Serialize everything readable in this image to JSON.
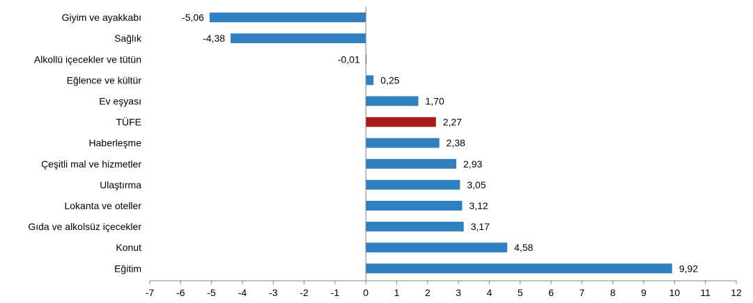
{
  "chart_data": {
    "type": "bar",
    "orientation": "horizontal",
    "categories": [
      "Giyim ve ayakkabı",
      "Sağlık",
      "Alkollü içecekler ve tütün",
      "Eğlence ve kültür",
      "Ev eşyası",
      "TÜFE",
      "Haberleşme",
      "Çeşitli mal ve hizmetler",
      "Ulaştırma",
      "Lokanta ve oteller",
      "Gıda ve alkolsüz içecekler",
      "Konut",
      "Eğitim"
    ],
    "values": [
      -5.06,
      -4.38,
      -0.01,
      0.25,
      1.7,
      2.27,
      2.38,
      2.93,
      3.05,
      3.12,
      3.17,
      4.58,
      9.92
    ],
    "value_labels": [
      "-5,06",
      "-4,38",
      "-0,01",
      "0,25",
      "1,70",
      "2,27",
      "2,38",
      "2,93",
      "3,05",
      "3,12",
      "3,17",
      "4,58",
      "9,92"
    ],
    "highlight_category": "TÜFE",
    "bar_color": "#2F7FC1",
    "highlight_color": "#A61C1C",
    "xlim": [
      -7,
      12
    ],
    "xticks": [
      -7,
      -6,
      -5,
      -4,
      -3,
      -2,
      -1,
      0,
      1,
      2,
      3,
      4,
      5,
      6,
      7,
      8,
      9,
      10,
      11,
      12
    ],
    "grid": false,
    "legend": "none",
    "title": "",
    "xlabel": "",
    "ylabel": ""
  }
}
